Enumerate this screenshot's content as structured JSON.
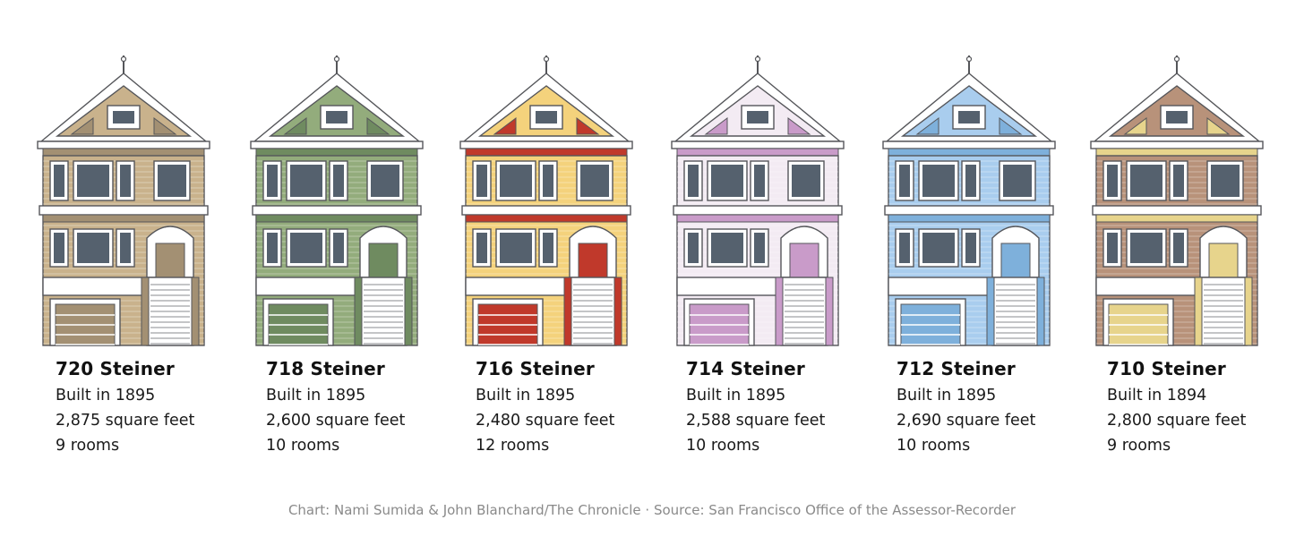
{
  "houses": [
    {
      "name": "720 Steiner",
      "built": "Built in 1895",
      "sqft": "2,875 square feet",
      "rooms": "9 rooms",
      "color": "#c9b28c",
      "accent": "#a39073"
    },
    {
      "name": "718 Steiner",
      "built": "Built in 1895",
      "sqft": "2,600 square feet",
      "rooms": "10 rooms",
      "color": "#93ac7c",
      "accent": "#6f8b60"
    },
    {
      "name": "716 Steiner",
      "built": "Built in 1895",
      "sqft": "2,480 square feet",
      "rooms": "12 rooms",
      "color": "#f4d27c",
      "accent": "#c0392b"
    },
    {
      "name": "714 Steiner",
      "built": "Built in 1895",
      "sqft": "2,588 square feet",
      "rooms": "10 rooms",
      "color": "#f3ebf3",
      "accent": "#c99bc9"
    },
    {
      "name": "712 Steiner",
      "built": "Built in 1895",
      "sqft": "2,690 square feet",
      "rooms": "10 rooms",
      "color": "#a9cdee",
      "accent": "#7eb0db"
    },
    {
      "name": "710 Steiner",
      "built": "Built in 1894",
      "sqft": "2,800 square feet",
      "rooms": "9 rooms",
      "color": "#b8927a",
      "accent": "#e7d48c"
    }
  ],
  "credit": "Chart: Nami Sumida & John Blanchard/The Chronicle · Source: San Francisco Office of the Assessor-Recorder"
}
